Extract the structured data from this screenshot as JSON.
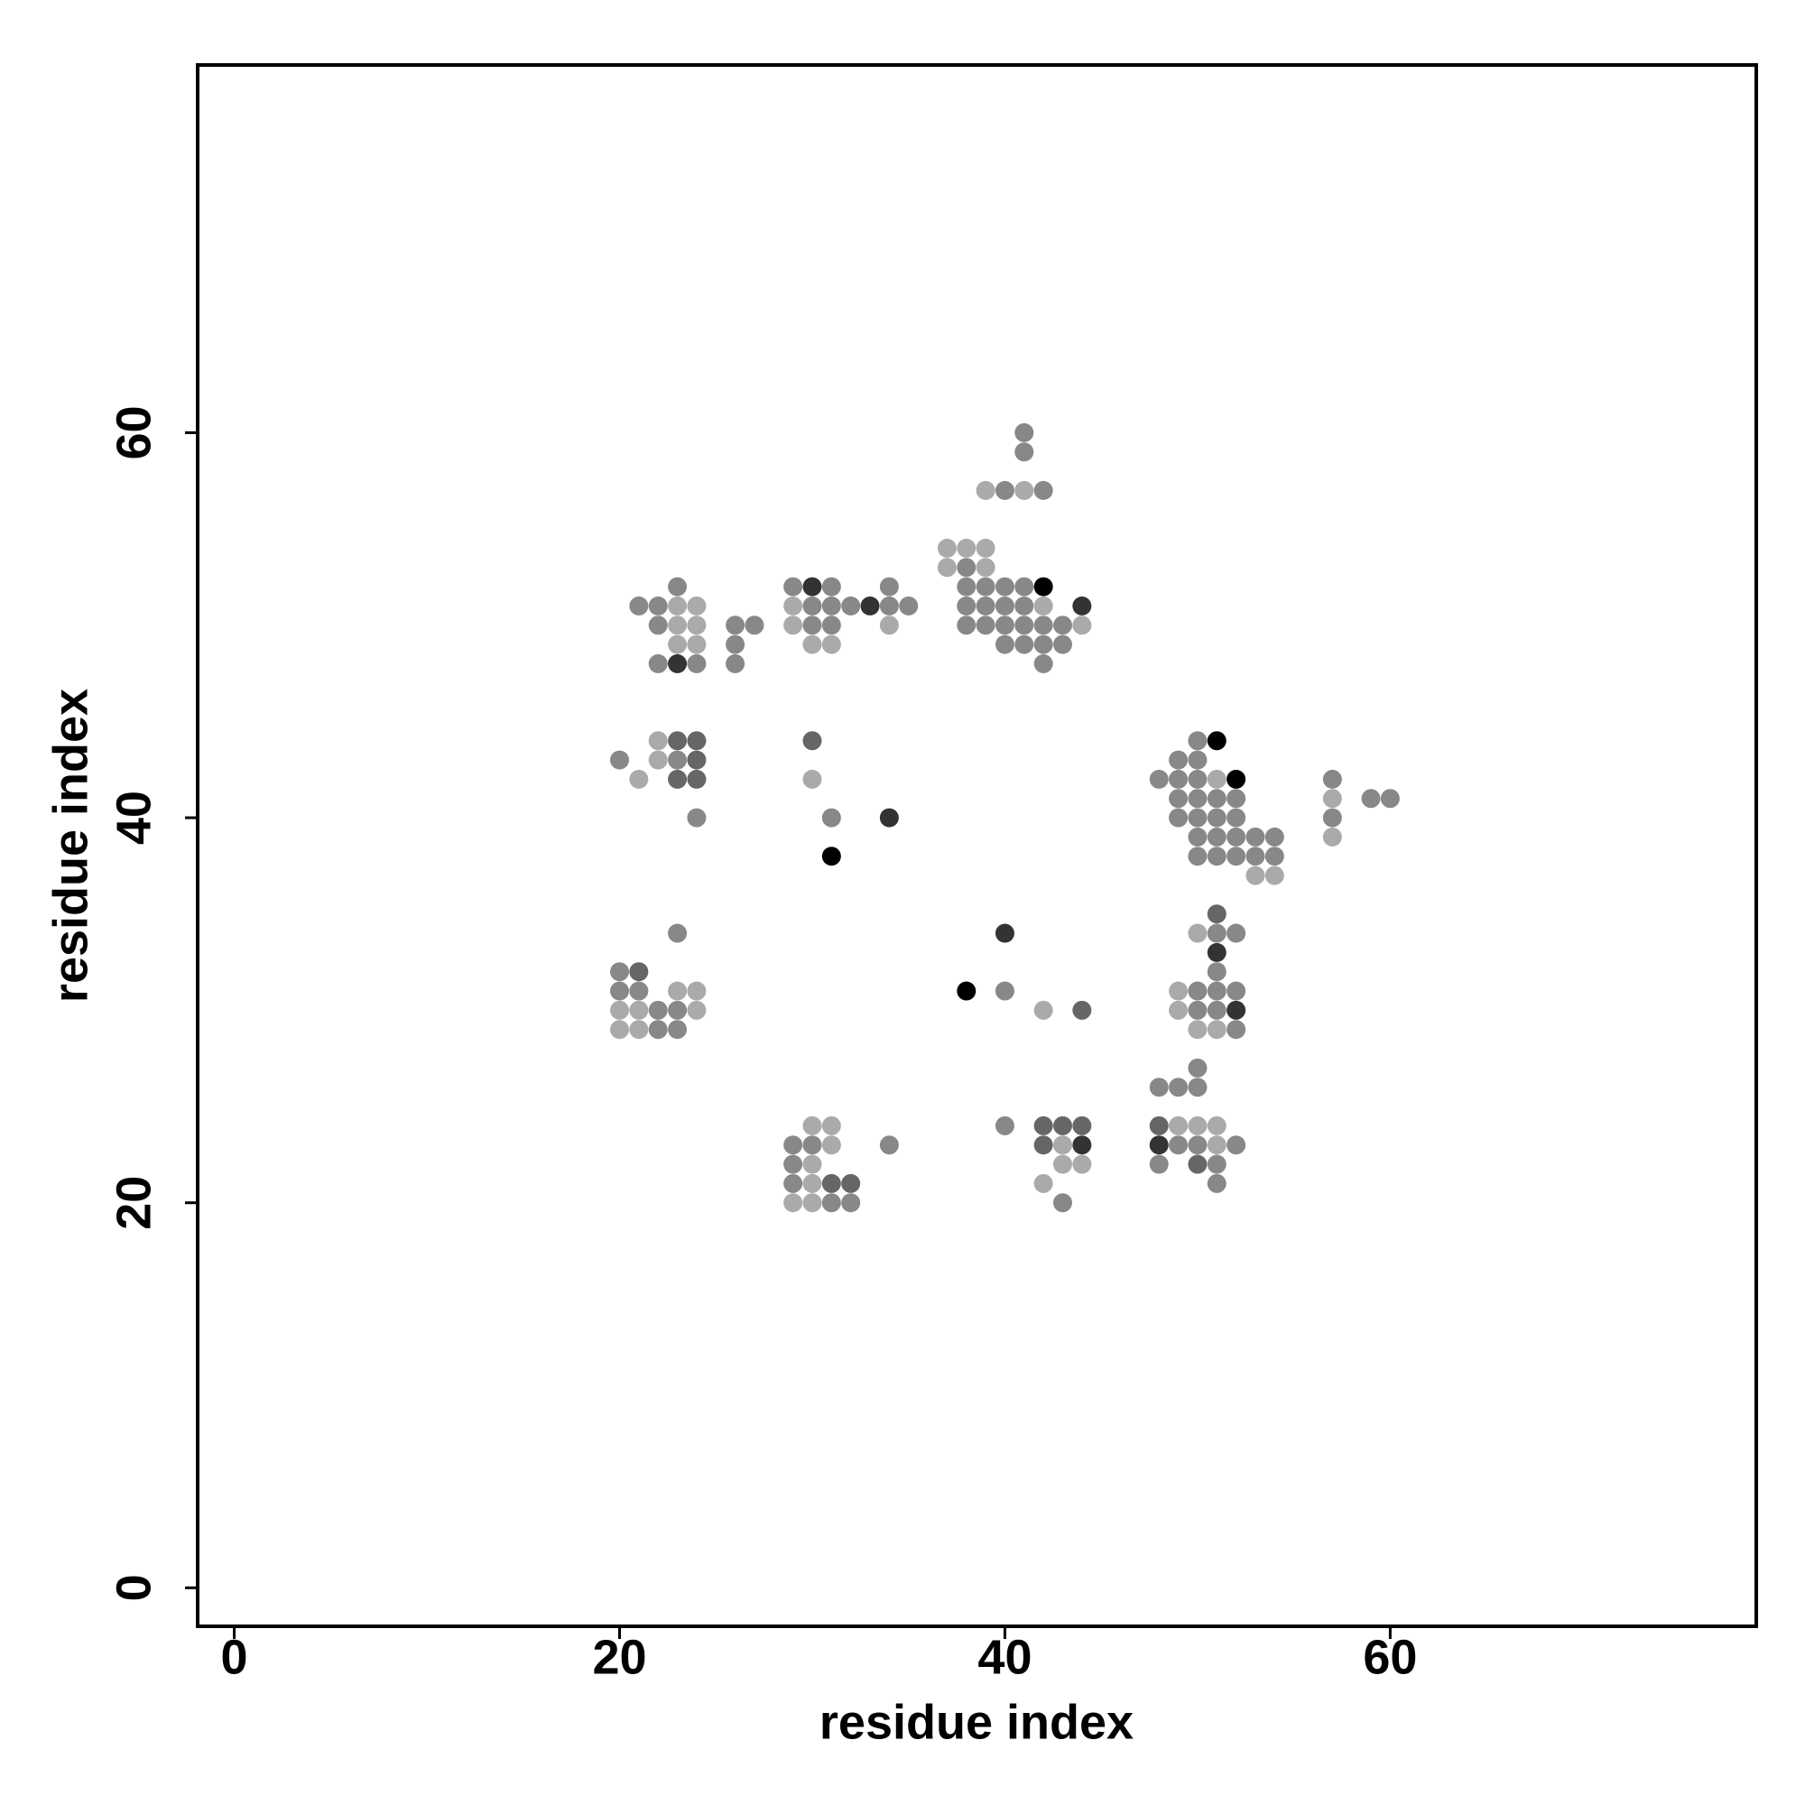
{
  "chart_data": {
    "type": "scatter",
    "x_label": "residue index",
    "y_label": "residue index",
    "xlim": [
      -1.9,
      79
    ],
    "ylim": [
      -2,
      79.1
    ],
    "xticks": [
      0,
      20,
      40,
      60
    ],
    "yticks": [
      0,
      20,
      40,
      60
    ],
    "x": [
      41,
      41,
      39,
      40,
      41,
      42,
      37,
      38,
      39,
      37,
      38,
      39,
      23,
      29,
      30,
      31,
      34,
      38,
      39,
      40,
      41,
      42,
      21,
      22,
      23,
      24,
      29,
      30,
      31,
      32,
      33,
      34,
      35,
      38,
      39,
      40,
      41,
      42,
      44,
      22,
      23,
      24,
      26,
      27,
      29,
      30,
      31,
      34,
      38,
      39,
      40,
      41,
      42,
      43,
      44,
      23,
      24,
      26,
      30,
      31,
      40,
      41,
      42,
      43,
      22,
      23,
      24,
      26,
      42,
      22,
      23,
      24,
      30,
      50,
      51,
      20,
      22,
      23,
      24,
      49,
      50,
      21,
      23,
      24,
      30,
      48,
      49,
      50,
      51,
      52,
      57,
      49,
      50,
      51,
      52,
      57,
      59,
      60,
      24,
      31,
      34,
      49,
      50,
      51,
      52,
      57,
      50,
      51,
      52,
      53,
      54,
      57,
      31,
      50,
      51,
      52,
      53,
      54,
      53,
      54,
      51,
      23,
      40,
      50,
      51,
      52,
      51,
      20,
      21,
      51,
      20,
      21,
      23,
      24,
      38,
      40,
      49,
      50,
      51,
      52,
      20,
      21,
      22,
      23,
      24,
      42,
      44,
      49,
      50,
      51,
      52,
      20,
      21,
      22,
      23,
      50,
      51,
      52,
      50,
      48,
      49,
      50,
      30,
      31,
      40,
      42,
      43,
      44,
      48,
      49,
      50,
      51,
      29,
      30,
      31,
      34,
      42,
      43,
      44,
      48,
      49,
      50,
      51,
      52,
      29,
      30,
      43,
      44,
      48,
      50,
      51,
      29,
      30,
      31,
      32,
      42,
      51,
      29,
      30,
      31,
      32,
      43
    ],
    "y": [
      60,
      59,
      57,
      57,
      57,
      57,
      54,
      54,
      54,
      53,
      53,
      53,
      52,
      52,
      52,
      52,
      52,
      52,
      52,
      52,
      52,
      52,
      51,
      51,
      51,
      51,
      51,
      51,
      51,
      51,
      51,
      51,
      51,
      51,
      51,
      51,
      51,
      51,
      51,
      50,
      50,
      50,
      50,
      50,
      50,
      50,
      50,
      50,
      50,
      50,
      50,
      50,
      50,
      50,
      50,
      49,
      49,
      49,
      49,
      49,
      49,
      49,
      49,
      49,
      48,
      48,
      48,
      48,
      48,
      44,
      44,
      44,
      44,
      44,
      44,
      43,
      43,
      43,
      43,
      43,
      43,
      42,
      42,
      42,
      42,
      42,
      42,
      42,
      42,
      42,
      42,
      41,
      41,
      41,
      41,
      41,
      41,
      41,
      40,
      40,
      40,
      40,
      40,
      40,
      40,
      40,
      39,
      39,
      39,
      39,
      39,
      39,
      38,
      38,
      38,
      38,
      38,
      38,
      37,
      37,
      35,
      34,
      34,
      34,
      34,
      34,
      33,
      32,
      32,
      32,
      31,
      31,
      31,
      31,
      31,
      31,
      31,
      31,
      31,
      31,
      30,
      30,
      30,
      30,
      30,
      30,
      30,
      30,
      30,
      30,
      30,
      29,
      29,
      29,
      29,
      29,
      29,
      29,
      27,
      26,
      26,
      26,
      24,
      24,
      24,
      24,
      24,
      24,
      24,
      24,
      24,
      24,
      23,
      23,
      23,
      23,
      23,
      23,
      23,
      23,
      23,
      23,
      23,
      23,
      22,
      22,
      22,
      22,
      22,
      22,
      22,
      21,
      21,
      21,
      21,
      21,
      21,
      20,
      20,
      20,
      20,
      20
    ],
    "colors": [
      "#888888",
      "#888888",
      "#aaaaaa",
      "#888888",
      "#aaaaaa",
      "#888888",
      "#aaaaaa",
      "#aaaaaa",
      "#aaaaaa",
      "#aaaaaa",
      "#888888",
      "#aaaaaa",
      "#888888",
      "#888888",
      "#333333",
      "#888888",
      "#888888",
      "#888888",
      "#888888",
      "#888888",
      "#888888",
      "#000000",
      "#888888",
      "#888888",
      "#aaaaaa",
      "#aaaaaa",
      "#aaaaaa",
      "#888888",
      "#888888",
      "#888888",
      "#333333",
      "#888888",
      "#888888",
      "#888888",
      "#888888",
      "#888888",
      "#888888",
      "#aaaaaa",
      "#333333",
      "#888888",
      "#aaaaaa",
      "#aaaaaa",
      "#888888",
      "#888888",
      "#aaaaaa",
      "#888888",
      "#888888",
      "#aaaaaa",
      "#888888",
      "#888888",
      "#888888",
      "#888888",
      "#888888",
      "#888888",
      "#aaaaaa",
      "#aaaaaa",
      "#aaaaaa",
      "#888888",
      "#aaaaaa",
      "#aaaaaa",
      "#888888",
      "#888888",
      "#888888",
      "#888888",
      "#888888",
      "#333333",
      "#888888",
      "#888888",
      "#888888",
      "#aaaaaa",
      "#666666",
      "#666666",
      "#666666",
      "#888888",
      "#000000",
      "#888888",
      "#aaaaaa",
      "#888888",
      "#666666",
      "#888888",
      "#888888",
      "#aaaaaa",
      "#666666",
      "#666666",
      "#aaaaaa",
      "#888888",
      "#888888",
      "#888888",
      "#aaaaaa",
      "#000000",
      "#888888",
      "#888888",
      "#888888",
      "#888888",
      "#888888",
      "#aaaaaa",
      "#888888",
      "#888888",
      "#888888",
      "#888888",
      "#333333",
      "#888888",
      "#888888",
      "#888888",
      "#888888",
      "#888888",
      "#888888",
      "#888888",
      "#888888",
      "#888888",
      "#888888",
      "#aaaaaa",
      "#000000",
      "#888888",
      "#888888",
      "#888888",
      "#888888",
      "#888888",
      "#aaaaaa",
      "#aaaaaa",
      "#666666",
      "#888888",
      "#333333",
      "#aaaaaa",
      "#888888",
      "#888888",
      "#333333",
      "#888888",
      "#666666",
      "#888888",
      "#888888",
      "#888888",
      "#aaaaaa",
      "#aaaaaa",
      "#000000",
      "#888888",
      "#aaaaaa",
      "#888888",
      "#888888",
      "#888888",
      "#aaaaaa",
      "#aaaaaa",
      "#888888",
      "#888888",
      "#aaaaaa",
      "#aaaaaa",
      "#666666",
      "#aaaaaa",
      "#888888",
      "#888888",
      "#333333",
      "#aaaaaa",
      "#aaaaaa",
      "#888888",
      "#888888",
      "#aaaaaa",
      "#aaaaaa",
      "#888888",
      "#888888",
      "#888888",
      "#888888",
      "#888888",
      "#aaaaaa",
      "#aaaaaa",
      "#888888",
      "#666666",
      "#666666",
      "#666666",
      "#666666",
      "#aaaaaa",
      "#aaaaaa",
      "#aaaaaa",
      "#888888",
      "#888888",
      "#aaaaaa",
      "#888888",
      "#666666",
      "#aaaaaa",
      "#333333",
      "#333333",
      "#888888",
      "#888888",
      "#aaaaaa",
      "#888888",
      "#888888",
      "#aaaaaa",
      "#aaaaaa",
      "#aaaaaa",
      "#888888",
      "#666666",
      "#888888",
      "#888888",
      "#aaaaaa",
      "#666666",
      "#666666",
      "#aaaaaa",
      "#888888",
      "#aaaaaa",
      "#aaaaaa",
      "#888888",
      "#888888",
      "#888888"
    ]
  }
}
